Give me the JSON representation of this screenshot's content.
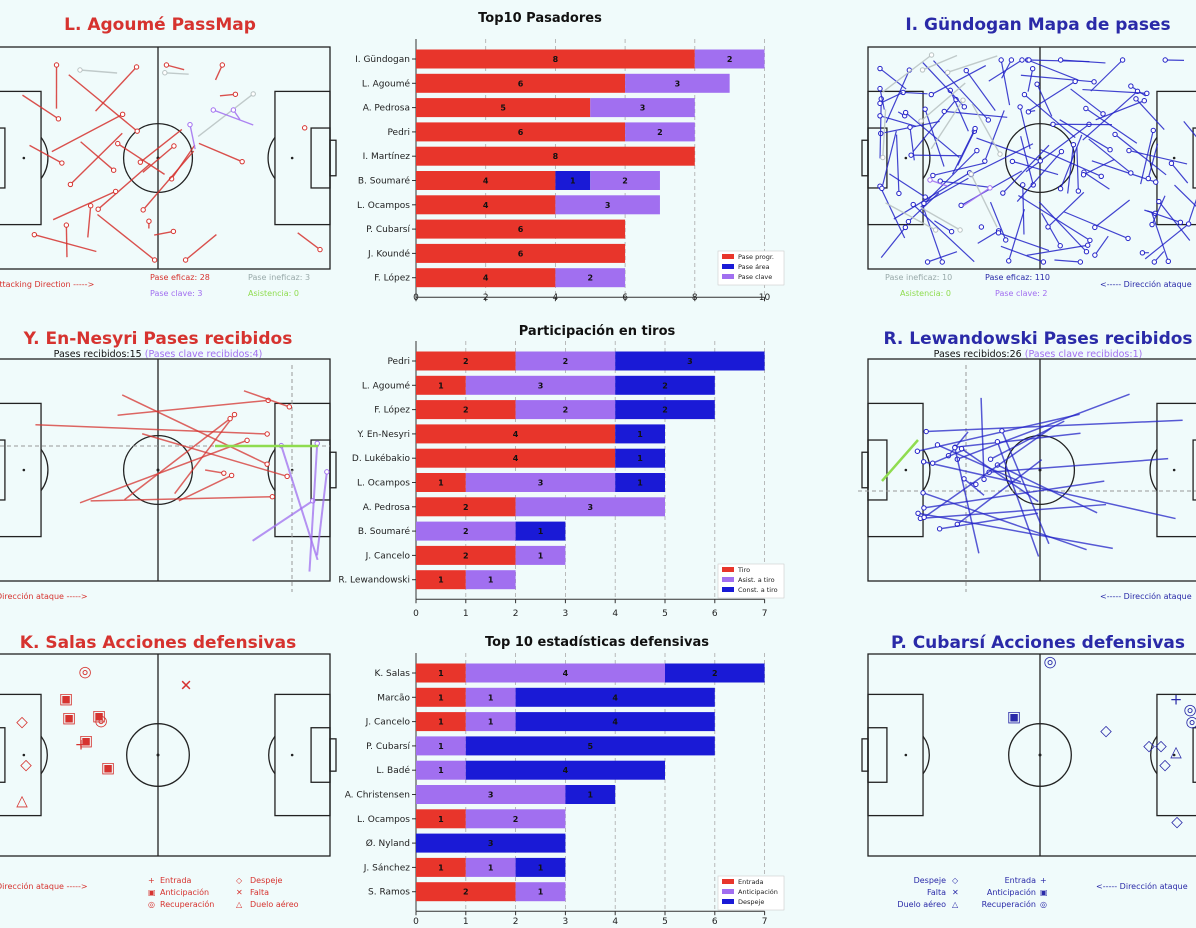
{
  "colors": {
    "red": "#e8352b",
    "purple": "#a16ff0",
    "blue": "#1a1ad6",
    "red_title": "#d6332f",
    "blue_title": "#2a2aa8",
    "green": "#8fdc4f",
    "grey": "#b8c2c2"
  },
  "panels": {
    "p1": {
      "title": "L. Agoumé PassMap",
      "direction": "Attacking Direction ----->",
      "legend": [
        "Pase eficaz: 28",
        "Pase ineficaz: 3",
        "Pase clave: 3",
        "Asistencia: 0"
      ]
    },
    "p2": {
      "title": "I. Gündogan Mapa de pases",
      "direction": "<----- Dirección ataque",
      "legend": [
        "Pase ineficaz: 10",
        "Pase eficaz: 110",
        "Asistencia: 0",
        "Pase clave: 2"
      ]
    },
    "p3": {
      "title": "Y. En-Nesyri Pases recibidos",
      "subtitle_a": "Pases recibidos:15",
      "subtitle_b": "(Pases clave recibidos:4)",
      "direction": "Dirección ataque ----->"
    },
    "p4": {
      "title": "R. Lewandowski Pases recibidos",
      "subtitle_a": "Pases recibidos:26",
      "subtitle_b": "(Pases clave recibidos:1)",
      "direction": "<----- Dirección ataque"
    },
    "p5": {
      "title": "K. Salas Acciones defensivas",
      "direction": "Dirección ataque ----->",
      "legend": [
        "Entrada",
        "Despeje",
        "Anticipación",
        "Falta",
        "Recuperación",
        "Duelo aéreo"
      ]
    },
    "p6": {
      "title": "P. Cubarsí Acciones defensivas",
      "direction": "<----- Dirección ataque",
      "legend": [
        "Despeje",
        "Entrada",
        "Falta",
        "Anticipación",
        "Duelo aéreo",
        "Recuperación"
      ]
    }
  },
  "chart_data": [
    {
      "type": "bar",
      "title": "Top10 Pasadores",
      "categories": [
        "I. Gündogan",
        "L. Agoumé",
        "A. Pedrosa",
        "Pedri",
        "I. Martínez",
        "B. Soumaré",
        "L. Ocampos",
        "P. Cubarsí",
        "J. Koundé",
        "F. López"
      ],
      "series": [
        {
          "name": "Pase progr.",
          "color": "#e8352b",
          "values": [
            8,
            6,
            5,
            6,
            8,
            4,
            4,
            6,
            6,
            4
          ]
        },
        {
          "name": "Pase área",
          "color": "#1a1ad6",
          "values": [
            0,
            0,
            0,
            0,
            0,
            1,
            0,
            0,
            0,
            0
          ]
        },
        {
          "name": "Pase clave",
          "color": "#a16ff0",
          "values": [
            2,
            3,
            3,
            2,
            0,
            2,
            3,
            0,
            0,
            2
          ]
        }
      ],
      "xlim": [
        0,
        10
      ],
      "xticks": [
        0,
        2,
        4,
        6,
        8,
        10
      ]
    },
    {
      "type": "bar",
      "title": "Participación en tiros",
      "categories": [
        "Pedri",
        "L. Agoumé",
        "F. López",
        "Y. En-Nesyri",
        "D. Lukébakio",
        "L. Ocampos",
        "A. Pedrosa",
        "B. Soumaré",
        "J. Cancelo",
        "R. Lewandowski"
      ],
      "series": [
        {
          "name": "Tiro",
          "color": "#e8352b",
          "values": [
            2,
            1,
            2,
            4,
            4,
            1,
            2,
            0,
            2,
            1
          ]
        },
        {
          "name": "Asist. a tiro",
          "color": "#a16ff0",
          "values": [
            2,
            3,
            2,
            0,
            0,
            3,
            3,
            2,
            1,
            1
          ]
        },
        {
          "name": "Const. a tiro",
          "color": "#1a1ad6",
          "values": [
            3,
            2,
            2,
            1,
            1,
            1,
            0,
            1,
            0,
            0
          ]
        }
      ],
      "xlim": [
        0,
        7
      ],
      "xticks": [
        0,
        1,
        2,
        3,
        4,
        5,
        6,
        7
      ]
    },
    {
      "type": "bar",
      "title": "Top 10 estadísticas defensivas",
      "categories": [
        "K. Salas",
        "Marcão",
        "J. Cancelo",
        "P. Cubarsí",
        "L. Badé",
        "A. Christensen",
        "L. Ocampos",
        "Ø. Nyland",
        "J. Sánchez",
        "S. Ramos"
      ],
      "series": [
        {
          "name": "Entrada",
          "color": "#e8352b",
          "values": [
            1,
            1,
            1,
            0,
            0,
            0,
            1,
            0,
            1,
            2
          ]
        },
        {
          "name": "Anticipación",
          "color": "#a16ff0",
          "values": [
            4,
            1,
            1,
            1,
            1,
            3,
            2,
            0,
            1,
            1
          ]
        },
        {
          "name": "Despeje",
          "color": "#1a1ad6",
          "values": [
            2,
            4,
            4,
            5,
            4,
            1,
            0,
            3,
            1,
            0
          ]
        }
      ],
      "xlim": [
        0,
        7
      ],
      "xticks": [
        0,
        1,
        2,
        3,
        4,
        5,
        6,
        7
      ]
    }
  ]
}
